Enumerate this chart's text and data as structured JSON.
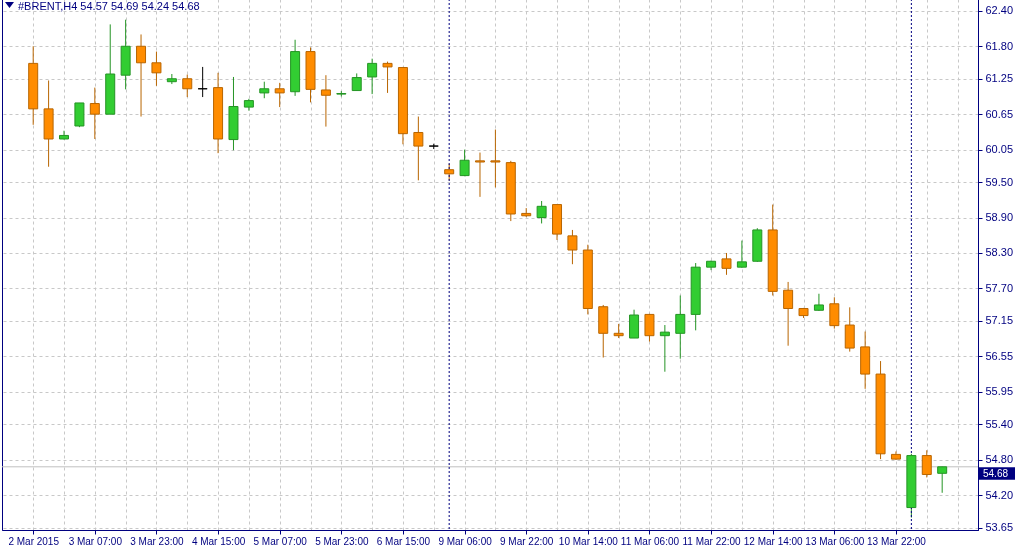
{
  "chart_data": {
    "type": "candlestick",
    "title": "#BRENT,H4 54.57 54.69 54.24 54.68",
    "categories": [
      "2 Mar 2015",
      null,
      null,
      null,
      "3 Mar 07:00",
      null,
      null,
      null,
      "3 Mar 23:00",
      null,
      null,
      null,
      "4 Mar 15:00",
      null,
      null,
      null,
      "5 Mar 07:00",
      null,
      null,
      null,
      "5 Mar 23:00",
      null,
      null,
      null,
      "6 Mar 15:00",
      null,
      null,
      null,
      "9 Mar 06:00",
      null,
      null,
      null,
      "9 Mar 22:00",
      null,
      null,
      null,
      "10 Mar 14:00",
      null,
      null,
      null,
      "11 Mar 06:00",
      null,
      null,
      null,
      "11 Mar 22:00",
      null,
      null,
      null,
      "12 Mar 14:00",
      null,
      null,
      null,
      "13 Mar 06:00",
      null,
      null,
      null,
      "13 Mar 22:00",
      null,
      null,
      null
    ],
    "ohlc": [
      [
        61.51,
        61.8,
        60.47,
        60.74
      ],
      [
        60.74,
        61.22,
        59.76,
        60.23
      ],
      [
        60.23,
        60.37,
        60.22,
        60.29
      ],
      [
        60.45,
        60.84,
        60.43,
        60.84
      ],
      [
        60.83,
        61.1,
        60.23,
        60.65
      ],
      [
        60.65,
        62.17,
        60.65,
        61.33
      ],
      [
        61.31,
        62.25,
        61.07,
        61.8
      ],
      [
        61.8,
        62.0,
        60.61,
        61.52
      ],
      [
        61.52,
        61.71,
        61.13,
        61.35
      ],
      [
        61.2,
        61.33,
        61.16,
        61.25
      ],
      [
        61.25,
        61.32,
        60.94,
        61.08
      ],
      [
        61.08,
        61.45,
        60.94,
        61.08
      ],
      [
        61.1,
        61.35,
        59.99,
        60.23
      ],
      [
        60.22,
        61.28,
        60.04,
        60.78
      ],
      [
        60.77,
        60.91,
        60.71,
        60.88
      ],
      [
        61.01,
        61.2,
        60.92,
        61.08
      ],
      [
        61.08,
        61.18,
        60.77,
        61.01
      ],
      [
        61.03,
        61.91,
        60.96,
        61.71
      ],
      [
        61.71,
        61.78,
        60.85,
        61.07
      ],
      [
        61.06,
        61.31,
        60.44,
        60.97
      ],
      [
        60.99,
        61.04,
        60.95,
        61.0
      ],
      [
        61.05,
        61.34,
        61.05,
        61.27
      ],
      [
        61.28,
        61.59,
        60.99,
        61.51
      ],
      [
        61.51,
        61.54,
        61.01,
        61.45
      ],
      [
        61.44,
        61.45,
        60.14,
        60.32
      ],
      [
        60.34,
        60.61,
        59.53,
        60.11
      ],
      [
        60.11,
        60.15,
        60.06,
        60.11
      ],
      [
        59.71,
        59.81,
        59.53,
        59.64
      ],
      [
        59.61,
        60.05,
        59.6,
        59.87
      ],
      [
        59.86,
        60.0,
        59.25,
        59.84
      ],
      [
        59.86,
        60.39,
        59.41,
        59.84
      ],
      [
        59.83,
        59.86,
        58.84,
        58.96
      ],
      [
        58.97,
        59.06,
        58.91,
        58.93
      ],
      [
        58.9,
        59.18,
        58.8,
        59.09
      ],
      [
        59.12,
        59.12,
        58.52,
        58.62
      ],
      [
        58.59,
        58.69,
        58.11,
        58.35
      ],
      [
        58.35,
        58.44,
        57.26,
        57.36
      ],
      [
        57.39,
        57.42,
        56.53,
        56.94
      ],
      [
        56.94,
        57.1,
        56.86,
        56.9
      ],
      [
        56.86,
        57.34,
        56.86,
        57.25
      ],
      [
        57.26,
        57.27,
        56.8,
        56.9
      ],
      [
        56.9,
        57.08,
        56.29,
        56.96
      ],
      [
        56.94,
        57.58,
        56.51,
        57.26
      ],
      [
        57.26,
        58.13,
        56.99,
        58.06
      ],
      [
        58.06,
        58.17,
        58.01,
        58.16
      ],
      [
        58.2,
        58.3,
        57.93,
        58.04
      ],
      [
        58.06,
        58.51,
        58.05,
        58.15
      ],
      [
        58.16,
        58.72,
        58.15,
        58.69
      ],
      [
        58.69,
        59.12,
        57.58,
        57.65
      ],
      [
        57.67,
        57.81,
        56.73,
        57.36
      ],
      [
        57.36,
        57.37,
        57.2,
        57.24
      ],
      [
        57.33,
        57.61,
        57.32,
        57.42
      ],
      [
        57.44,
        57.55,
        57.02,
        57.07
      ],
      [
        57.08,
        57.38,
        56.63,
        56.69
      ],
      [
        56.71,
        56.97,
        56.0,
        56.25
      ],
      [
        56.25,
        56.47,
        54.81,
        54.9
      ],
      [
        54.89,
        54.94,
        54.8,
        54.81
      ],
      [
        53.99,
        54.9,
        53.82,
        54.87
      ],
      [
        54.87,
        54.96,
        54.5,
        54.55
      ],
      [
        54.57,
        54.69,
        54.24,
        54.68
      ]
    ],
    "colors": [
      "#ff8c00",
      "#ff8c00",
      "#32cd32",
      "#32cd32",
      "#ff8c00",
      "#32cd32",
      "#32cd32",
      "#ff8c00",
      "#ff8c00",
      "#32cd32",
      "#ff8c00",
      "#000000",
      "#ff8c00",
      "#32cd32",
      "#32cd32",
      "#32cd32",
      "#ff8c00",
      "#32cd32",
      "#ff8c00",
      "#ff8c00",
      "#32cd32",
      "#32cd32",
      "#32cd32",
      "#ff8c00",
      "#ff8c00",
      "#ff8c00",
      "#000000",
      "#ff8c00",
      "#32cd32",
      "#ff8c00",
      "#ff8c00",
      "#ff8c00",
      "#ff8c00",
      "#32cd32",
      "#ff8c00",
      "#ff8c00",
      "#ff8c00",
      "#ff8c00",
      "#ff8c00",
      "#32cd32",
      "#ff8c00",
      "#32cd32",
      "#32cd32",
      "#32cd32",
      "#32cd32",
      "#ff8c00",
      "#32cd32",
      "#32cd32",
      "#ff8c00",
      "#ff8c00",
      "#ff8c00",
      "#32cd32",
      "#ff8c00",
      "#ff8c00",
      "#ff8c00",
      "#ff8c00",
      "#ff8c00",
      "#32cd32",
      "#ff8c00",
      "#32cd32"
    ],
    "ylim": [
      53.61,
      62.6
    ],
    "yticks": [
      {
        "value": 53.65,
        "label": "53.65"
      },
      {
        "value": 54.2,
        "label": "54.20"
      },
      {
        "value": 54.8,
        "label": "54.80"
      },
      {
        "value": 55.4,
        "label": "55.40"
      },
      {
        "value": 55.95,
        "label": "55.95"
      },
      {
        "value": 56.55,
        "label": "56.55"
      },
      {
        "value": 57.15,
        "label": "57.15"
      },
      {
        "value": 57.7,
        "label": "57.70"
      },
      {
        "value": 58.3,
        "label": "58.30"
      },
      {
        "value": 58.9,
        "label": "58.90"
      },
      {
        "value": 59.5,
        "label": "59.50"
      },
      {
        "value": 60.05,
        "label": "60.05"
      },
      {
        "value": 60.65,
        "label": "60.65"
      },
      {
        "value": 61.25,
        "label": "61.25"
      },
      {
        "value": 61.8,
        "label": "61.80"
      },
      {
        "value": 62.4,
        "label": "62.40"
      }
    ],
    "grid": true,
    "ref_lines": [
      {
        "axis": "y",
        "value": 54.68,
        "label": "54.68",
        "color": "#c0c0c0"
      }
    ]
  }
}
